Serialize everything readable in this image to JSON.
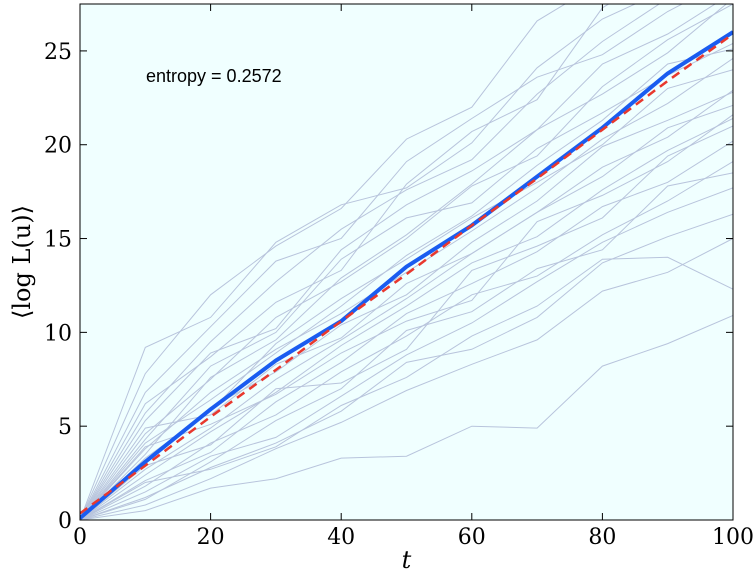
{
  "chart_data": {
    "type": "line",
    "title": "",
    "xlabel": "t",
    "ylabel": "⟨log L(u)⟩",
    "xlim": [
      0,
      100
    ],
    "ylim": [
      0,
      27.5
    ],
    "xticks": [
      "0",
      "20",
      "40",
      "60",
      "80",
      "100"
    ],
    "yticks": [
      "0",
      "5",
      "10",
      "15",
      "20",
      "25"
    ],
    "annotation": "entropy = 0.2572",
    "grid": false,
    "colors": {
      "background": "#f0ffff",
      "samples": "#b8c4dc",
      "mean": "#1a5cf0",
      "fit": "#e8382e"
    },
    "x": [
      0,
      10,
      20,
      30,
      40,
      50,
      60,
      70,
      80,
      90,
      100
    ],
    "mean_series": [
      0.1,
      3.1,
      5.9,
      8.5,
      10.6,
      13.5,
      15.7,
      18.3,
      20.9,
      23.8,
      26.0
    ],
    "fit_series": [
      0.35,
      2.9,
      5.5,
      8.0,
      10.6,
      13.1,
      15.7,
      18.2,
      20.8,
      23.4,
      25.9
    ],
    "sample_series": [
      [
        0,
        9.2,
        10.8,
        14.8,
        16.8,
        17.7,
        20.1,
        24.1,
        26.7,
        28.3,
        29.2
      ],
      [
        0,
        7.8,
        12.0,
        14.6,
        16.6,
        20.3,
        22.0,
        26.6,
        28.7,
        30.1,
        31.8
      ],
      [
        0,
        6.2,
        8.7,
        11.6,
        13.3,
        17.9,
        20.7,
        22.4,
        27.3,
        29.4,
        30.6
      ],
      [
        0,
        5.3,
        8.9,
        10.2,
        14.4,
        16.8,
        18.6,
        20.8,
        24.3,
        25.9,
        28.1
      ],
      [
        0,
        4.6,
        7.5,
        10.8,
        12.7,
        15.0,
        17.8,
        19.4,
        23.1,
        25.6,
        27.5
      ],
      [
        0,
        4.1,
        6.4,
        8.9,
        11.4,
        14.1,
        16.2,
        18.9,
        21.3,
        24.3,
        25.1
      ],
      [
        0,
        3.8,
        6.8,
        9.1,
        11.0,
        13.2,
        15.4,
        17.7,
        20.3,
        22.2,
        24.6
      ],
      [
        0,
        3.3,
        5.8,
        9.4,
        11.8,
        13.9,
        16.1,
        18.0,
        20.0,
        23.0,
        24.0
      ],
      [
        0,
        3.0,
        6.0,
        7.9,
        10.4,
        12.0,
        14.8,
        17.0,
        19.9,
        21.3,
        22.8
      ],
      [
        0,
        2.7,
        4.9,
        7.5,
        9.6,
        11.8,
        14.2,
        16.4,
        18.3,
        20.9,
        22.1
      ],
      [
        0,
        2.4,
        4.7,
        6.8,
        9.3,
        11.4,
        13.7,
        15.1,
        17.6,
        19.7,
        21.4
      ],
      [
        0,
        2.1,
        3.6,
        6.3,
        8.4,
        11.0,
        12.6,
        14.3,
        16.7,
        18.0,
        20.2
      ],
      [
        0,
        1.8,
        4.1,
        5.6,
        7.9,
        9.8,
        12.0,
        13.0,
        15.2,
        17.0,
        19.1
      ],
      [
        0,
        1.5,
        3.4,
        4.4,
        6.6,
        8.8,
        10.5,
        12.7,
        14.8,
        16.4,
        17.7
      ],
      [
        0,
        1.2,
        2.8,
        4.1,
        5.8,
        8.4,
        9.1,
        10.8,
        13.7,
        15.1,
        16.3
      ],
      [
        0,
        0.8,
        2.2,
        3.8,
        5.2,
        6.9,
        8.3,
        9.6,
        12.2,
        13.2,
        15.0
      ],
      [
        0,
        0.5,
        1.7,
        2.2,
        3.3,
        3.4,
        5.0,
        4.9,
        8.2,
        9.4,
        10.9
      ],
      [
        0,
        4.9,
        5.6,
        8.3,
        9.7,
        12.6,
        14.2,
        16.4,
        18.8,
        20.4,
        22.9
      ],
      [
        0,
        3.5,
        7.6,
        9.6,
        12.9,
        15.2,
        17.9,
        20.8,
        22.7,
        24.9,
        27.8
      ],
      [
        0,
        2.9,
        4.0,
        7.0,
        7.3,
        9.1,
        13.3,
        14.6,
        16.1,
        19.4,
        21.0
      ],
      [
        0,
        5.7,
        9.5,
        12.7,
        15.5,
        17.6,
        19.2,
        22.7,
        25.5,
        27.8,
        29.6
      ],
      [
        0,
        2.0,
        2.7,
        3.9,
        6.1,
        7.6,
        9.8,
        11.4,
        13.9,
        14.0,
        12.3
      ],
      [
        0,
        3.9,
        5.1,
        6.7,
        8.9,
        10.6,
        11.7,
        15.9,
        17.3,
        19.1,
        21.6
      ],
      [
        0,
        6.8,
        10.3,
        13.8,
        15.0,
        19.1,
        21.4,
        23.6,
        24.8,
        27.1,
        28.9
      ],
      [
        0,
        1.1,
        3.1,
        5.3,
        7.0,
        10.1,
        11.1,
        13.4,
        14.4,
        17.8,
        18.5
      ],
      [
        0,
        4.3,
        8.2,
        10.0,
        13.9,
        16.1,
        16.9,
        19.8,
        21.7,
        23.7,
        25.4
      ]
    ]
  }
}
